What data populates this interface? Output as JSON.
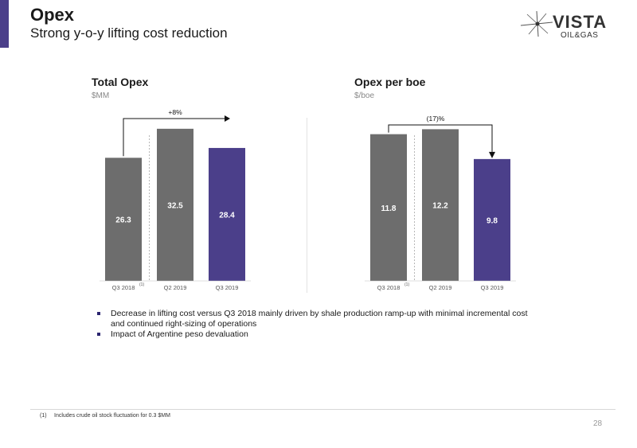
{
  "page": {
    "title": "Opex",
    "subtitle": "Strong y-o-y lifting cost reduction",
    "page_number": "28"
  },
  "logo": {
    "wordmark": "VISTA",
    "tagline": "OIL&GAS"
  },
  "colors": {
    "grey_bar": "#6d6d6d",
    "purple_bar": "#4b3f8a",
    "accent": "#4b3f8a"
  },
  "chart_data": [
    {
      "type": "bar",
      "title": "Total Opex",
      "ylabel": "$MM",
      "categories": [
        "Q3 2018",
        "Q2 2019",
        "Q3 2019"
      ],
      "category_superscripts": [
        "(1)",
        "",
        ""
      ],
      "values": [
        26.3,
        32.5,
        28.4
      ],
      "value_labels": [
        "26.3",
        "32.5",
        "28.4"
      ],
      "bar_colors": [
        "#6d6d6d",
        "#6d6d6d",
        "#4b3f8a"
      ],
      "ylim": [
        0,
        34
      ],
      "annotation": {
        "text": "+8%",
        "from": "Q3 2018",
        "to": "Q3 2019",
        "style": "arrow-right"
      },
      "grid": false
    },
    {
      "type": "bar",
      "title": "Opex per boe",
      "ylabel": "$/boe",
      "categories": [
        "Q3 2018",
        "Q2 2019",
        "Q3 2019"
      ],
      "category_superscripts": [
        "(1)",
        "",
        ""
      ],
      "values": [
        11.8,
        12.2,
        9.8
      ],
      "value_labels": [
        "11.8",
        "12.2",
        "9.8"
      ],
      "bar_colors": [
        "#6d6d6d",
        "#6d6d6d",
        "#4b3f8a"
      ],
      "ylim": [
        0,
        12.8
      ],
      "annotation": {
        "text": "(17)%",
        "from": "Q3 2018",
        "to": "Q3 2019",
        "style": "arrow-down"
      },
      "grid": false
    }
  ],
  "bullets": [
    "Decrease in lifting cost versus Q3 2018 mainly driven by shale production ramp-up with minimal incremental cost and continued right-sizing of operations",
    "Impact of Argentine peso devaluation"
  ],
  "footnote": {
    "number": "(1)",
    "text": "Includes crude oil stock fluctuation for 0.3 $MM"
  }
}
